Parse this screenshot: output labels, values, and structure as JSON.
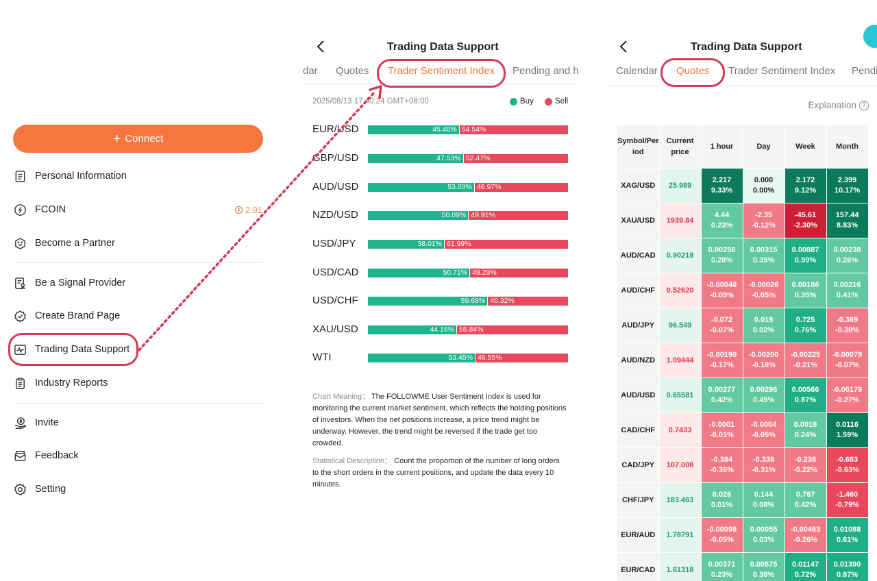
{
  "left": {
    "connect_label": "Connect",
    "menu": [
      {
        "label": "Personal Information",
        "icon": "document-icon"
      },
      {
        "label": "FCOIN",
        "icon": "coin-icon",
        "value": "2.91"
      },
      {
        "label": "Become a Partner",
        "icon": "smile-badge-icon"
      },
      {
        "label": "Be a Signal Provider",
        "icon": "signal-provider-icon"
      },
      {
        "label": "Create Brand Page",
        "icon": "brand-badge-icon"
      },
      {
        "label": "Trading Data Support",
        "icon": "chart-window-icon"
      },
      {
        "label": "Industry Reports",
        "icon": "clipboard-icon"
      },
      {
        "label": "Invite",
        "icon": "money-hand-icon"
      },
      {
        "label": "Feedback",
        "icon": "feedback-icon"
      },
      {
        "label": "Setting",
        "icon": "gear-icon"
      }
    ]
  },
  "middle": {
    "title": "Trading Data Support",
    "tabs": [
      "dar",
      "Quotes",
      "Trader Sentiment Index",
      "Pending and h"
    ],
    "active_tab": "Trader Sentiment Index",
    "timestamp": "2025/08/13 17:40:24 GMT+08:00",
    "legend_buy": "Buy",
    "legend_sell": "Sell",
    "colors": {
      "buy": "#1fb58c",
      "sell": "#e8475c",
      "accent": "#f0763f"
    },
    "sentiment": [
      {
        "symbol": "EUR/USD",
        "buy": "45.46%",
        "sell": "54.54%",
        "buy_frac": 0.4546
      },
      {
        "symbol": "GBP/USD",
        "buy": "47.53%",
        "sell": "52.47%",
        "buy_frac": 0.4753
      },
      {
        "symbol": "AUD/USD",
        "buy": "53.03%",
        "sell": "46.97%",
        "buy_frac": 0.5303
      },
      {
        "symbol": "NZD/USD",
        "buy": "50.09%",
        "sell": "49.91%",
        "buy_frac": 0.5009
      },
      {
        "symbol": "USD/JPY",
        "buy": "38.01%",
        "sell": "61.99%",
        "buy_frac": 0.3801
      },
      {
        "symbol": "USD/CAD",
        "buy": "50.71%",
        "sell": "49.29%",
        "buy_frac": 0.5071
      },
      {
        "symbol": "USD/CHF",
        "buy": "59.68%",
        "sell": "40.32%",
        "buy_frac": 0.5968
      },
      {
        "symbol": "XAU/USD",
        "buy": "44.16%",
        "sell": "55.84%",
        "buy_frac": 0.4416
      },
      {
        "symbol": "WTI",
        "buy": "53.45%",
        "sell": "46.55%",
        "buy_frac": 0.5345
      }
    ],
    "chart_meaning_label": "Chart Meaning：",
    "chart_meaning_text": "The FOLLOWME User Sentiment Index is used for monitoring the current market sentiment, which reflects the holding positions of investors. When the net positions increase, a price trend might be underway. However, the trend might be reversed if the trade get too crowded.",
    "stat_desc_label": "Statistical Description：",
    "stat_desc_text": "Count the proportion of the number of long orders to the short orders in the current positions, and update the data every 10 minutes."
  },
  "right": {
    "title": "Trading Data Support",
    "tabs": [
      "Calendar",
      "Quotes",
      "Trader Sentiment Index",
      "Pendi"
    ],
    "active_tab": "Quotes",
    "explanation": "Explanation",
    "columns": [
      "Symbol/Per iod",
      "Current price",
      "1 hour",
      "Day",
      "Week",
      "Month"
    ],
    "rows": [
      {
        "symbol": "XAG/USD",
        "price": "25.989",
        "price_dir": "up",
        "cells": [
          [
            "2.217",
            "9.33%",
            "g3"
          ],
          [
            "0.000",
            "0.00%",
            "z"
          ],
          [
            "2.172",
            "9.12%",
            "g3"
          ],
          [
            "2.399",
            "10.17%",
            "g3"
          ]
        ]
      },
      {
        "symbol": "XAU/USD",
        "price": "1939.84",
        "price_dir": "down",
        "cells": [
          [
            "4.44",
            "0.23%",
            "g1"
          ],
          [
            "-2.35",
            "-0.12%",
            "r1"
          ],
          [
            "-45.61",
            "-2.30%",
            "r3"
          ],
          [
            "157.44",
            "8.83%",
            "g3"
          ]
        ]
      },
      {
        "symbol": "AUD/CAD",
        "price": "0.90218",
        "price_dir": "up",
        "cells": [
          [
            "0.00256",
            "0.28%",
            "g1"
          ],
          [
            "0.00315",
            "0.35%",
            "g1"
          ],
          [
            "0.00887",
            "0.99%",
            "g2"
          ],
          [
            "0.00230",
            "0.26%",
            "g1"
          ]
        ]
      },
      {
        "symbol": "AUD/CHF",
        "price": "0.52620",
        "price_dir": "down",
        "cells": [
          [
            "-0.00046",
            "-0.09%",
            "r1"
          ],
          [
            "-0.00026",
            "-0.05%",
            "r1"
          ],
          [
            "0.00186",
            "0.35%",
            "g1"
          ],
          [
            "0.00216",
            "0.41%",
            "g1"
          ]
        ]
      },
      {
        "symbol": "AUD/JPY",
        "price": "96.549",
        "price_dir": "up",
        "cells": [
          [
            "-0.072",
            "-0.07%",
            "r1"
          ],
          [
            "0.019",
            "0.02%",
            "g1"
          ],
          [
            "0.725",
            "0.76%",
            "g2"
          ],
          [
            "-0.369",
            "-0.38%",
            "r1"
          ]
        ]
      },
      {
        "symbol": "AUD/NZD",
        "price": "1.09444",
        "price_dir": "down",
        "cells": [
          [
            "-0.00190",
            "-0.17%",
            "r1"
          ],
          [
            "-0.00200",
            "-0.18%",
            "r1"
          ],
          [
            "-0.00225",
            "-0.21%",
            "r1"
          ],
          [
            "-0.00079",
            "-0.07%",
            "r1"
          ]
        ]
      },
      {
        "symbol": "AUD/USD",
        "price": "0.65581",
        "price_dir": "up",
        "cells": [
          [
            "0.00277",
            "0.42%",
            "g1"
          ],
          [
            "0.00296",
            "0.45%",
            "g1"
          ],
          [
            "0.00566",
            "0.87%",
            "g2"
          ],
          [
            "-0.00179",
            "-0.27%",
            "r1"
          ]
        ]
      },
      {
        "symbol": "CAD/CHF",
        "price": "0.7433",
        "price_dir": "down",
        "cells": [
          [
            "-0.0001",
            "-0.01%",
            "r1"
          ],
          [
            "-0.0004",
            "-0.05%",
            "r1"
          ],
          [
            "0.0018",
            "0.24%",
            "g1"
          ],
          [
            "0.0116",
            "1.59%",
            "g3"
          ]
        ]
      },
      {
        "symbol": "CAD/JPY",
        "price": "107.008",
        "price_dir": "down",
        "cells": [
          [
            "-0.384",
            "-0.36%",
            "r1"
          ],
          [
            "-0.338",
            "-0.31%",
            "r1"
          ],
          [
            "-0.238",
            "-0.22%",
            "r1"
          ],
          [
            "-0.683",
            "-0.63%",
            "r2"
          ]
        ]
      },
      {
        "symbol": "CHF/JPY",
        "price": "183.463",
        "price_dir": "up",
        "cells": [
          [
            "0.026",
            "0.01%",
            "g1"
          ],
          [
            "0.144",
            "0.08%",
            "g1"
          ],
          [
            "0.767",
            "0.42%",
            "g1"
          ],
          [
            "-1.460",
            "-0.79%",
            "r2"
          ]
        ]
      },
      {
        "symbol": "EUR/AUD",
        "price": "1.78791",
        "price_dir": "up",
        "cells": [
          [
            "-0.00098",
            "-0.05%",
            "r1"
          ],
          [
            "0.00055",
            "0.03%",
            "g1"
          ],
          [
            "-0.00463",
            "-0.26%",
            "r1"
          ],
          [
            "0.01088",
            "0.61%",
            "g2"
          ]
        ]
      },
      {
        "symbol": "EUR/CAD",
        "price": "1.61318",
        "price_dir": "up",
        "cells": [
          [
            "0.00371",
            "0.23%",
            "g1"
          ],
          [
            "0.00575",
            "0.36%",
            "g1"
          ],
          [
            "0.01147",
            "0.72%",
            "g2"
          ],
          [
            "0.01390",
            "0.87%",
            "g2"
          ]
        ]
      }
    ]
  }
}
